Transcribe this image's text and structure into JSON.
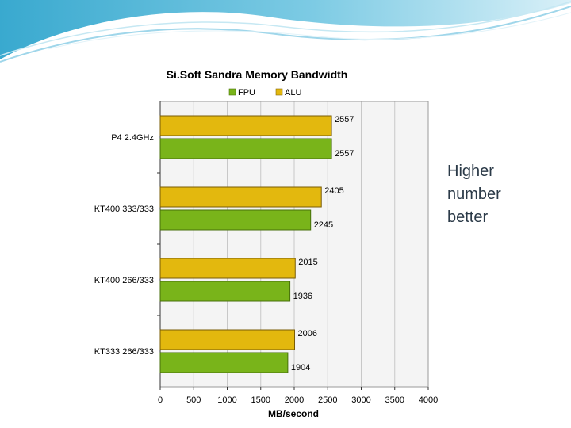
{
  "side_note": {
    "lines": [
      "Higher",
      "number",
      "better"
    ]
  },
  "chart_data": {
    "type": "bar",
    "orientation": "horizontal",
    "title": "Si.Soft Sandra Memory Bandwidth",
    "xlabel": "MB/second",
    "ylabel": "",
    "categories": [
      "P4 2.4GHz",
      "KT400 333/333",
      "KT400 266/333",
      "KT333 266/333"
    ],
    "series": [
      {
        "name": "FPU",
        "color": "#79b41a",
        "values": [
          2557,
          2245,
          1936,
          1904
        ]
      },
      {
        "name": "ALU",
        "color": "#e3b80e",
        "values": [
          2557,
          2405,
          2015,
          2006
        ]
      }
    ],
    "xlim": [
      0,
      4000
    ],
    "xticks": [
      0,
      500,
      1000,
      1500,
      2000,
      2500,
      3000,
      3500,
      4000
    ],
    "grid": true,
    "legend": "top"
  }
}
